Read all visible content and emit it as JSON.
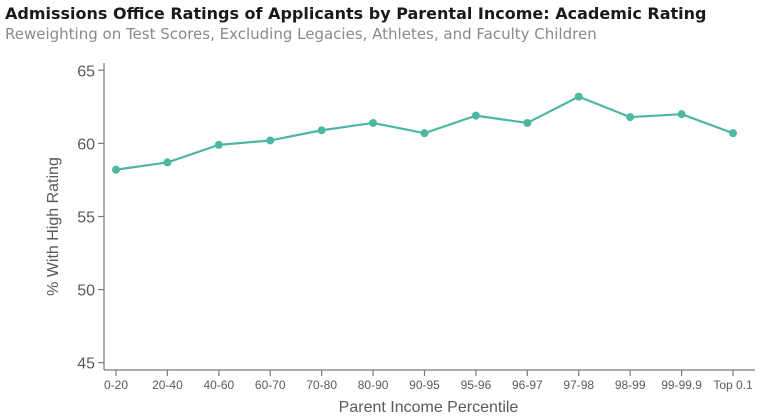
{
  "title": "Admissions Office Ratings of Applicants by Parental Income: Academic Rating",
  "subtitle": "Reweighting on Test Scores, Excluding Legacies, Athletes, and Faculty Children",
  "colors": {
    "line": "#4db6a4",
    "axis": "#7a7a7a",
    "text": "#5a5a5a"
  },
  "chart_data": {
    "type": "line",
    "title": "Admissions Office Ratings of Applicants by Parental Income: Academic Rating",
    "subtitle": "Reweighting on Test Scores, Excluding Legacies, Athletes, and Faculty Children",
    "xlabel": "Parent Income Percentile",
    "ylabel": "% With High Rating",
    "categories": [
      "0-20",
      "20-40",
      "40-60",
      "60-70",
      "70-80",
      "80-90",
      "90-95",
      "95-96",
      "96-97",
      "97-98",
      "98-99",
      "99-99.9",
      "Top 0.1"
    ],
    "series": [
      {
        "values": [
          58.2,
          58.7,
          59.9,
          60.2,
          60.9,
          61.4,
          60.7,
          61.9,
          61.4,
          63.2,
          61.8,
          62.0,
          60.7
        ]
      }
    ],
    "ylim": [
      44.5,
      65.5
    ],
    "yticks": [
      45,
      50,
      55,
      60,
      65
    ],
    "grid": false,
    "legend": "none"
  }
}
